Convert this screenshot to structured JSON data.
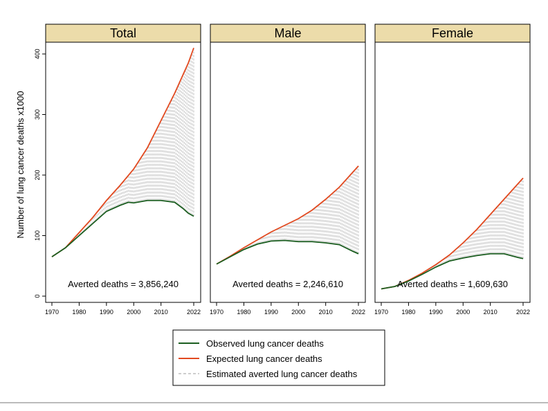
{
  "figure": {
    "ylabel": "Number of lung cancer deaths x1000",
    "colors": {
      "observed": "#1b5e20",
      "expected": "#e2491f",
      "averted": "#bdbdbd",
      "strip_bg": "#ecdcaa"
    }
  },
  "legend": {
    "items": [
      {
        "label": "Observed lung cancer deaths",
        "style": "solid-green"
      },
      {
        "label": "Expected lung cancer deaths",
        "style": "solid-orange"
      },
      {
        "label": "Estimated averted lung cancer deaths",
        "style": "dashed-gray"
      }
    ]
  },
  "chart_data": [
    {
      "type": "line",
      "title": "Total",
      "annotation": "Averted deaths = 3,856,240",
      "xlim": [
        1970,
        2022
      ],
      "ylim": [
        0,
        420
      ],
      "xticks": [
        1970,
        1980,
        1990,
        2000,
        2010,
        2022
      ],
      "yticks": [
        0,
        100,
        200,
        300,
        400
      ],
      "series": [
        {
          "name": "Observed lung cancer deaths",
          "x": [
            1970,
            1975,
            1980,
            1985,
            1990,
            1995,
            1998,
            2000,
            2005,
            2010,
            2015,
            2018,
            2020,
            2022
          ],
          "y": [
            65,
            80,
            100,
            120,
            140,
            150,
            155,
            154,
            158,
            158,
            155,
            145,
            137,
            132
          ]
        },
        {
          "name": "Expected lung cancer deaths",
          "x": [
            1970,
            1975,
            1980,
            1985,
            1990,
            1995,
            2000,
            2005,
            2010,
            2015,
            2020,
            2022
          ],
          "y": [
            65,
            80,
            105,
            130,
            158,
            183,
            210,
            245,
            290,
            335,
            385,
            410
          ]
        }
      ]
    },
    {
      "type": "line",
      "title": "Male",
      "annotation": "Averted deaths = 2,246,610",
      "xlim": [
        1970,
        2022
      ],
      "ylim": [
        0,
        420
      ],
      "xticks": [
        1970,
        1980,
        1990,
        2000,
        2010,
        2022
      ],
      "yticks": [
        0,
        100,
        200,
        300,
        400
      ],
      "series": [
        {
          "name": "Observed lung cancer deaths",
          "x": [
            1970,
            1975,
            1980,
            1985,
            1990,
            1995,
            2000,
            2005,
            2010,
            2015,
            2020,
            2022
          ],
          "y": [
            53,
            65,
            77,
            86,
            91,
            92,
            90,
            90,
            88,
            85,
            74,
            70
          ]
        },
        {
          "name": "Expected lung cancer deaths",
          "x": [
            1970,
            1975,
            1980,
            1985,
            1990,
            1995,
            2000,
            2005,
            2010,
            2015,
            2020,
            2022
          ],
          "y": [
            53,
            66,
            80,
            93,
            106,
            117,
            128,
            142,
            160,
            180,
            205,
            215
          ]
        }
      ]
    },
    {
      "type": "line",
      "title": "Female",
      "annotation": "Averted deaths = 1,609,630",
      "xlim": [
        1970,
        2022
      ],
      "ylim": [
        0,
        420
      ],
      "xticks": [
        1970,
        1980,
        1990,
        2000,
        2010,
        2022
      ],
      "yticks": [
        0,
        100,
        200,
        300,
        400
      ],
      "series": [
        {
          "name": "Observed lung cancer deaths",
          "x": [
            1970,
            1975,
            1980,
            1985,
            1990,
            1995,
            2000,
            2005,
            2010,
            2015,
            2020,
            2022
          ],
          "y": [
            12,
            16,
            25,
            36,
            48,
            58,
            63,
            67,
            70,
            70,
            64,
            62
          ]
        },
        {
          "name": "Expected lung cancer deaths",
          "x": [
            1970,
            1975,
            1980,
            1985,
            1990,
            1995,
            2000,
            2005,
            2010,
            2015,
            2020,
            2022
          ],
          "y": [
            12,
            16,
            26,
            38,
            52,
            68,
            88,
            110,
            135,
            160,
            185,
            195
          ]
        }
      ]
    }
  ]
}
